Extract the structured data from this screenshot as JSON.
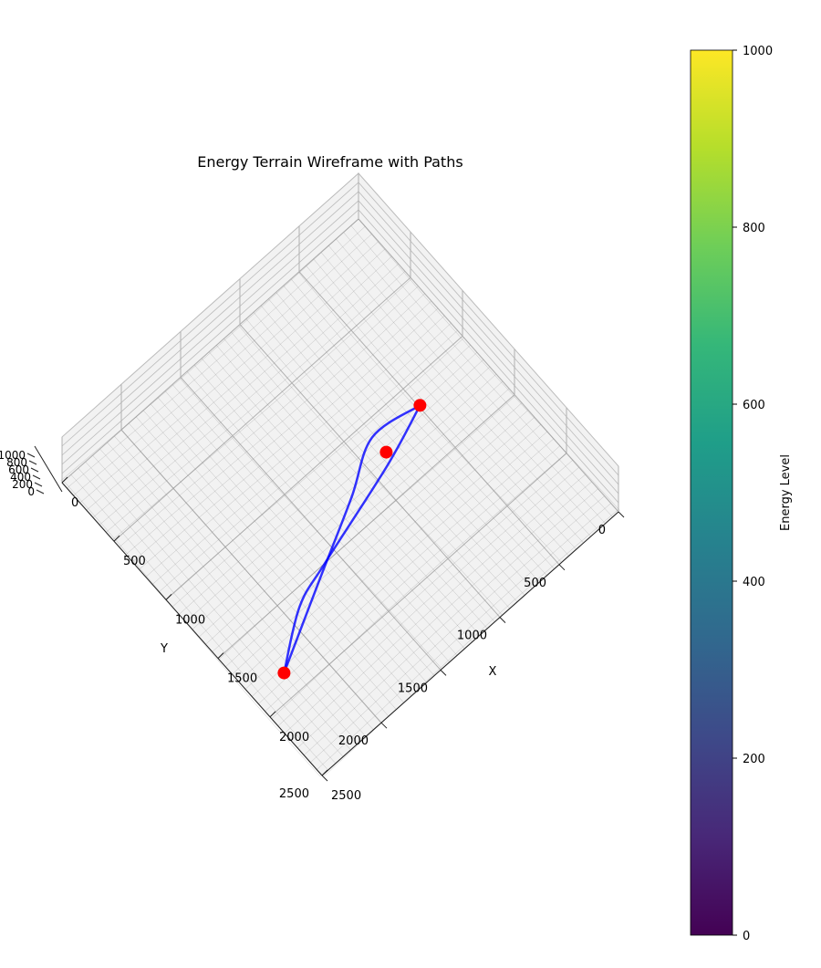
{
  "chart_data": {
    "type": "3d-wireframe",
    "title": "Energy Terrain Wireframe with Paths",
    "xlabel": "X",
    "ylabel": "Y",
    "zlabel": "",
    "x_ticks": [
      "0",
      "500",
      "1000",
      "1500",
      "2000",
      "2500"
    ],
    "y_ticks": [
      "0",
      "500",
      "1000",
      "1500",
      "2000",
      "2500"
    ],
    "z_ticks": [
      "0",
      "200",
      "400",
      "600",
      "800",
      "1000"
    ],
    "xlim": [
      0,
      2500
    ],
    "ylim": [
      0,
      2500
    ],
    "zlim": [
      0,
      1000
    ],
    "grid": true,
    "surface_color": "#808080",
    "path_color": "#0000ff",
    "marker_color": "#ff0000",
    "paths": [
      {
        "points": [
          [
            1150,
            490
          ],
          [
            1300,
            900
          ],
          [
            1500,
            1600
          ],
          [
            1600,
            1900
          ],
          [
            1850,
            2250
          ]
        ]
      },
      {
        "points": [
          [
            1150,
            490
          ],
          [
            1100,
            850
          ],
          [
            1300,
            1200
          ],
          [
            1560,
            1700
          ],
          [
            1850,
            2250
          ]
        ]
      }
    ],
    "markers": [
      {
        "x": 1150,
        "y": 490
      },
      {
        "x": 1230,
        "y": 845
      },
      {
        "x": 1850,
        "y": 2250
      }
    ],
    "colorbar": {
      "label": "Energy Level",
      "min": 0,
      "max": 1000,
      "ticks": [
        "0",
        "200",
        "400",
        "600",
        "800",
        "1000"
      ],
      "colormap": "viridis",
      "stops": [
        "#440154",
        "#482878",
        "#3e4989",
        "#31688e",
        "#26828e",
        "#1f9e89",
        "#35b779",
        "#6ece58",
        "#b5de2b",
        "#fde725"
      ]
    }
  }
}
